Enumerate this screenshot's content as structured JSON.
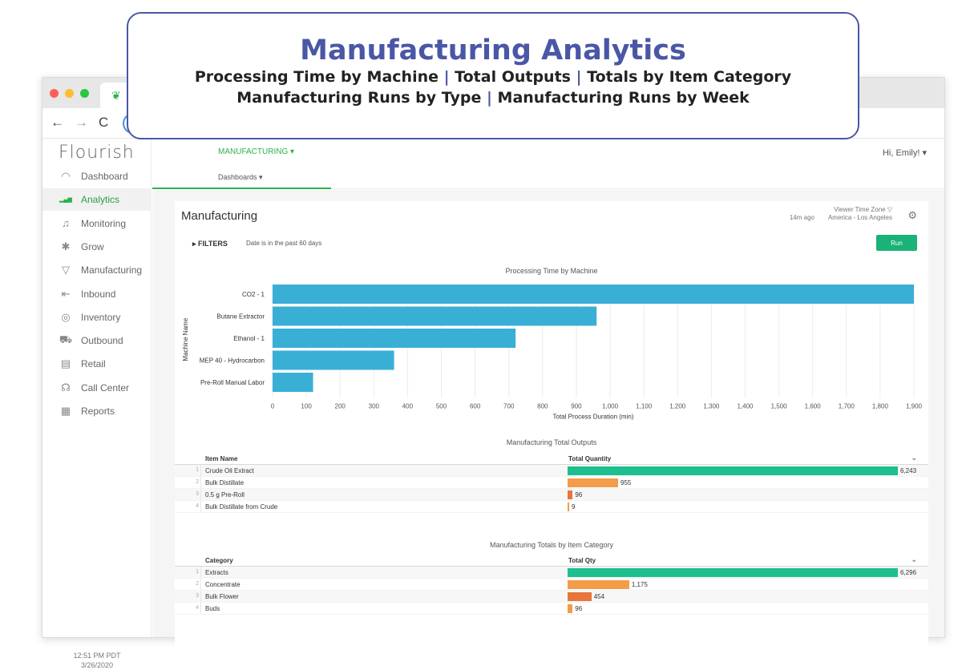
{
  "banner": {
    "title": "Manufacturing Analytics",
    "line1": [
      "Processing Time by Machine",
      "Total Outputs",
      "Totals by Item Category"
    ],
    "line2": [
      "Manufacturing Runs by Type",
      "Manufacturing Runs by Week"
    ],
    "separator": "|"
  },
  "browser": {
    "back_icon": "←",
    "forward_icon": "→",
    "reload_icon": "C"
  },
  "sidebar": {
    "logo": "Flourish",
    "items": [
      {
        "label": "Dashboard",
        "icon": "dashboard-icon",
        "glyph": "◠"
      },
      {
        "label": "Analytics",
        "icon": "analytics-icon",
        "glyph": "▂▄▆",
        "active": true
      },
      {
        "label": "Monitoring",
        "icon": "bell-icon",
        "glyph": "♫"
      },
      {
        "label": "Grow",
        "icon": "leaf-icon",
        "glyph": "✱"
      },
      {
        "label": "Manufacturing",
        "icon": "funnel-icon",
        "glyph": "▽"
      },
      {
        "label": "Inbound",
        "icon": "inbound-icon",
        "glyph": "⇤"
      },
      {
        "label": "Inventory",
        "icon": "target-icon",
        "glyph": "◎"
      },
      {
        "label": "Outbound",
        "icon": "truck-icon",
        "glyph": "⛟"
      },
      {
        "label": "Retail",
        "icon": "money-icon",
        "glyph": "▤"
      },
      {
        "label": "Call Center",
        "icon": "headset-icon",
        "glyph": "☊"
      },
      {
        "label": "Reports",
        "icon": "table-icon",
        "glyph": "▦"
      }
    ],
    "time": "12:51 PM PDT",
    "date": "3/26/2020"
  },
  "topbar": {
    "module": "MANUFACTURING ▾",
    "dashboards": "Dashboards ▾",
    "user": "Hi, Emily! ▾"
  },
  "card": {
    "title": "Manufacturing",
    "updated": "14m ago",
    "tz_label": "Viewer Time Zone ▽",
    "tz_value": "America - Los Angeles",
    "filters_label": "▸  FILTERS",
    "filter_text": "Date is in the past 60 days",
    "run_label": "Run"
  },
  "chart_data": {
    "type": "bar",
    "orientation": "horizontal",
    "title": "Processing Time by Machine",
    "xlabel": "Total Process Duration (min)",
    "ylabel": "Machine Name",
    "categories": [
      "CO2 - 1",
      "Butane Extractor",
      "Ethanol - 1",
      "MEP 40 - Hydrocarbon",
      "Pre-Roll Manual Labor"
    ],
    "values": [
      1900,
      960,
      720,
      360,
      120
    ],
    "xlim": [
      0,
      1900
    ],
    "ticks": [
      0,
      100,
      200,
      300,
      400,
      500,
      600,
      700,
      800,
      900,
      1000,
      1100,
      1200,
      1300,
      1400,
      1500,
      1600,
      1700,
      1800,
      1900
    ],
    "tick_labels": [
      "0",
      "100",
      "200",
      "300",
      "400",
      "500",
      "600",
      "700",
      "800",
      "900",
      "1,000",
      "1,100",
      "1,200",
      "1,300",
      "1,400",
      "1,500",
      "1,600",
      "1,700",
      "1,800",
      "1,900"
    ],
    "color": "#3aafd6",
    "grid": true
  },
  "outputs_table": {
    "title": "Manufacturing Total Outputs",
    "col_name": "Item Name",
    "col_qty": "Total Quantity",
    "max": 6243,
    "rows": [
      {
        "idx": "1",
        "name": "Crude Oil Extract",
        "qty": 6243,
        "qty_label": "6,243",
        "color": "#1dbf8f"
      },
      {
        "idx": "2",
        "name": "Bulk Distillate",
        "qty": 955,
        "qty_label": "955",
        "color": "#f39c4a"
      },
      {
        "idx": "3",
        "name": "0.5 g Pre-Roll",
        "qty": 96,
        "qty_label": "96",
        "color": "#e8763c"
      },
      {
        "idx": "4",
        "name": "Bulk Distillate from Crude",
        "qty": 9,
        "qty_label": "9",
        "color": "#f39c4a"
      }
    ]
  },
  "category_table": {
    "title": "Manufacturing Totals by Item Category",
    "col_name": "Category",
    "col_qty": "Total Qty",
    "max": 6296,
    "rows": [
      {
        "idx": "1",
        "name": "Extracts",
        "qty": 6296,
        "qty_label": "6,296",
        "color": "#1dbf8f"
      },
      {
        "idx": "2",
        "name": "Concentrate",
        "qty": 1175,
        "qty_label": "1,175",
        "color": "#f39c4a"
      },
      {
        "idx": "3",
        "name": "Bulk Flower",
        "qty": 454,
        "qty_label": "454",
        "color": "#e8763c"
      },
      {
        "idx": "4",
        "name": "Buds",
        "qty": 96,
        "qty_label": "96",
        "color": "#f39c4a"
      }
    ]
  }
}
